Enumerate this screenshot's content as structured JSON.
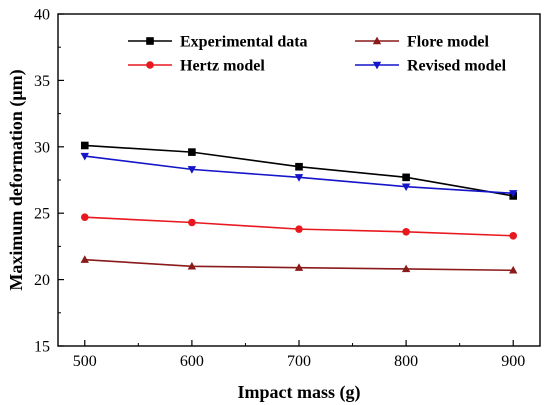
{
  "chart_data": {
    "type": "line",
    "title": "",
    "xlabel": "Impact mass (g)",
    "ylabel": "Maximum deformation (μm)",
    "xlim": [
      475,
      925
    ],
    "ylim": [
      15,
      40
    ],
    "x": [
      500,
      600,
      700,
      800,
      900
    ],
    "xticks": [
      "500",
      "600",
      "700",
      "800",
      "900"
    ],
    "yticks": [
      "15",
      "20",
      "25",
      "30",
      "35",
      "40"
    ],
    "grid": false,
    "legend_position": "top",
    "series": [
      {
        "name": "Experimental data",
        "color": "#000000",
        "marker": "square",
        "values": [
          30.1,
          29.6,
          28.5,
          27.7,
          26.3
        ]
      },
      {
        "name": "Flore model",
        "color": "#8b1a1a",
        "marker": "triangle-up",
        "values": [
          21.5,
          21.0,
          20.9,
          20.8,
          20.7
        ]
      },
      {
        "name": "Hertz model",
        "color": "#e8181e",
        "marker": "circle",
        "values": [
          24.7,
          24.3,
          23.8,
          23.6,
          23.3
        ]
      },
      {
        "name": "Revised model",
        "color": "#1414c8",
        "marker": "triangle-down",
        "values": [
          29.3,
          28.3,
          27.7,
          27.0,
          26.5
        ]
      }
    ]
  }
}
